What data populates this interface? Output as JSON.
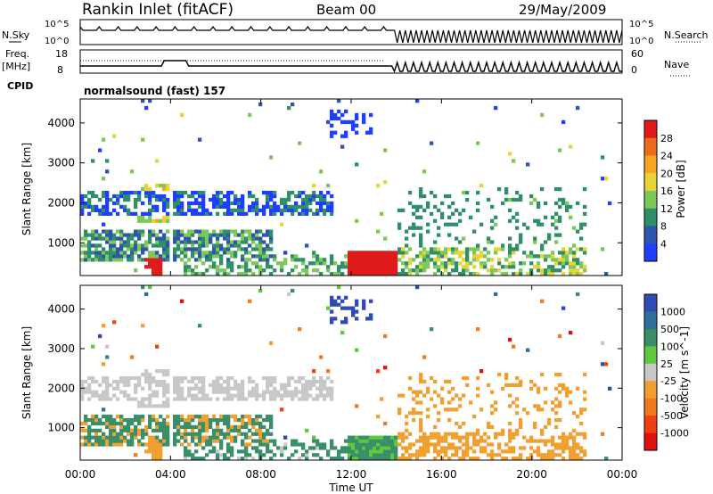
{
  "header": {
    "station": "Rankin Inlet (fitACF)",
    "beam": "Beam 00",
    "date": "29/May/2009"
  },
  "sky_panel": {
    "left_label": "N.Sky",
    "right_label": "N.Search",
    "left_ticks": [
      "10^5",
      "10^0"
    ],
    "right_ticks": [
      "10^5",
      "10^0"
    ]
  },
  "freq_panel": {
    "left_label_1": "Freq.",
    "left_label_2": "[MHz]",
    "right_label": "Nave",
    "left_ticks": [
      "18",
      "8"
    ],
    "right_ticks": [
      "60",
      "0"
    ]
  },
  "cpid": {
    "label": "CPID",
    "value": "normalsound (fast) 157"
  },
  "chart_data": [
    {
      "type": "heatmap",
      "quantity": "Power",
      "xlabel": "",
      "ylabel": "Slant Range [km]",
      "y_ticks": [
        "1000",
        "2000",
        "3000",
        "4000"
      ],
      "ylim": [
        180,
        4600
      ],
      "colorbar": {
        "label": "Power [dB]",
        "ticks": [
          "4",
          "8",
          "12",
          "16",
          "20",
          "24",
          "28"
        ],
        "colors": [
          "#1f3fff",
          "#2f55ad",
          "#2f8f6a",
          "#7dc85a",
          "#e8d535",
          "#f5a623",
          "#f06a1c",
          "#e01b1b"
        ]
      },
      "series_description": "Echo intensity versus slant range and time; strong near-range echoes (red, >24 dB) between 12:00 and 14:00 and 02:00-04:00; weaker blue/green patches at 1800-2200 km 00:00-11:00"
    },
    {
      "type": "heatmap",
      "quantity": "Velocity",
      "xlabel": "Time UT",
      "ylabel": "Slant Range [km]",
      "y_ticks": [
        "1000",
        "2000",
        "3000",
        "4000"
      ],
      "x_ticks": [
        "00:00",
        "04:00",
        "08:00",
        "12:00",
        "16:00",
        "20:00",
        "00:00"
      ],
      "ylim": [
        180,
        4600
      ],
      "colorbar": {
        "label": "Velocity [m s^-1]",
        "ticks": [
          "1000",
          "500",
          "100",
          "25",
          "-25",
          "-100",
          "-500",
          "-1000"
        ],
        "colors": [
          "#2f49b5",
          "#2f6f9a",
          "#3a8f6a",
          "#5fc83c",
          "#c8c8c8",
          "#f0a030",
          "#f07a1c",
          "#f04010",
          "#e01010"
        ]
      },
      "series_description": "Doppler velocity; ground scatter (grey, |v|<25) dominates 1800-2200 km; near range 12:00-14:00 green (100-500 m/s); evening 16:00-22:00 orange (-100 to -500 m/s)"
    }
  ]
}
